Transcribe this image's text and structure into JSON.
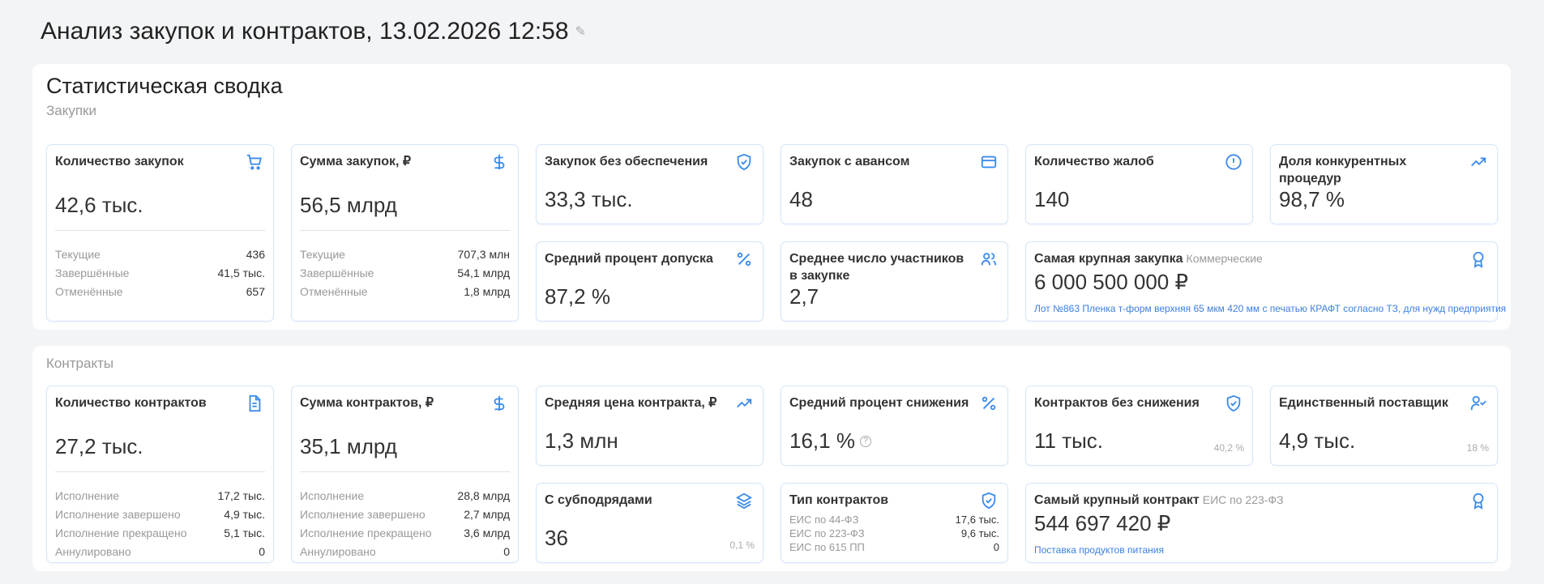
{
  "header": {
    "title": "Анализ закупок и контрактов, 13.02.2026 12:58"
  },
  "summary": {
    "title": "Статистическая сводка",
    "purchases": {
      "title": "Закупки",
      "count": {
        "title": "Количество закупок",
        "value": "42,6 тыс.",
        "rows": [
          {
            "l": "Текущие",
            "r": "436"
          },
          {
            "l": "Завершённые",
            "r": "41,5 тыс."
          },
          {
            "l": "Отменённые",
            "r": "657"
          }
        ]
      },
      "sum": {
        "title": "Сумма закупок, ₽",
        "value": "56,5 млрд",
        "rows": [
          {
            "l": "Текущие",
            "r": "707,3 млн"
          },
          {
            "l": "Завершённые",
            "r": "54,1 млрд"
          },
          {
            "l": "Отменённые",
            "r": "1,8 млрд"
          }
        ]
      },
      "no_security": {
        "title": "Закупок без обеспечения",
        "value": "33,3 тыс."
      },
      "advance": {
        "title": "Закупок с авансом",
        "value": "48"
      },
      "complaints": {
        "title": "Количество жалоб",
        "value": "140"
      },
      "competitive": {
        "title": "Доля конкурентных процедур",
        "value": "98,7 %"
      },
      "admission": {
        "title": "Средний процент допуска",
        "value": "87,2 %"
      },
      "participants": {
        "title": "Среднее число участников в закупке",
        "value": "2,7"
      },
      "largest": {
        "title": "Самая крупная закупка",
        "tag": "Коммерческие",
        "value": "6 000 500 000 ₽",
        "link": "Лот №863 Пленка т-форм верхняя 65 мкм 420 мм с печатью КРАФТ согласно ТЗ, для нужд предприятия"
      }
    },
    "contracts": {
      "title": "Контракты",
      "count": {
        "title": "Количество контрактов",
        "value": "27,2 тыс.",
        "rows": [
          {
            "l": "Исполнение",
            "r": "17,2 тыс."
          },
          {
            "l": "Исполнение завершено",
            "r": "4,9 тыс."
          },
          {
            "l": "Исполнение прекращено",
            "r": "5,1 тыс."
          },
          {
            "l": "Аннулировано",
            "r": "0"
          }
        ]
      },
      "sum": {
        "title": "Сумма контрактов, ₽",
        "value": "35,1 млрд",
        "rows": [
          {
            "l": "Исполнение",
            "r": "28,8 млрд"
          },
          {
            "l": "Исполнение завершено",
            "r": "2,7 млрд"
          },
          {
            "l": "Исполнение прекращено",
            "r": "3,6 млрд"
          },
          {
            "l": "Аннулировано",
            "r": "0"
          }
        ]
      },
      "avg_price": {
        "title": "Средняя цена контракта, ₽",
        "value": "1,3 млн"
      },
      "avg_reduction": {
        "title": "Средний процент снижения",
        "value": "16,1 %"
      },
      "no_reduction": {
        "title": "Контрактов без снижения",
        "value": "11 тыс.",
        "share": "40,2 %"
      },
      "single_supplier": {
        "title": "Единственный поставщик",
        "value": "4,9 тыс.",
        "share": "18 %"
      },
      "subcontract": {
        "title": "С субподрядами",
        "value": "36",
        "share": "0,1 %"
      },
      "types": {
        "title": "Тип контрактов",
        "rows": [
          {
            "l": "ЕИС по 44-ФЗ",
            "r": "17,6 тыс."
          },
          {
            "l": "ЕИС по 223-ФЗ",
            "r": "9,6 тыс."
          },
          {
            "l": "ЕИС по 615 ПП",
            "r": "0"
          }
        ]
      },
      "largest": {
        "title": "Самый крупный контракт",
        "tag": "ЕИС по 223-ФЗ",
        "value": "544 697 420 ₽",
        "link": "Поставка продуктов питания"
      }
    }
  },
  "colors": {
    "accent": "#3b8beb",
    "border": "#d6e6fa",
    "background": "#f3f4f6"
  }
}
